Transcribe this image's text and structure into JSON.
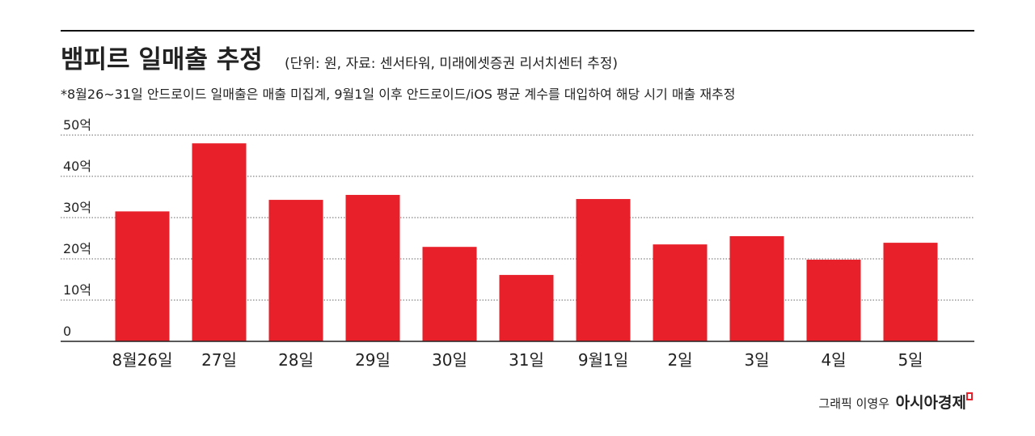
{
  "chart_data": {
    "type": "bar",
    "title": "뱀피르 일매출 추정",
    "subtitle": "(단위: 원, 자료: 센서타워, 미래에셋증권 리서치센터 추정)",
    "note": "*8월26~31일 안드로이드 일매출은 매출 미집계, 9월1일 이후 안드로이드/iOS 평균 계수를 대입하여 해당 시기 매출 재추정",
    "categories": [
      "8월26일",
      "27일",
      "28일",
      "29일",
      "30일",
      "31일",
      "9월1일",
      "2일",
      "3일",
      "4일",
      "5일"
    ],
    "values": [
      31.5,
      48,
      34.3,
      35.5,
      22.9,
      16.1,
      34.5,
      23.5,
      25.5,
      19.8,
      23.9
    ],
    "color": "#e8202a",
    "ylim": [
      0,
      50
    ],
    "yticks": [
      0,
      {
        "value": 10,
        "label": "10억"
      },
      {
        "value": 20,
        "label": "20억"
      },
      {
        "value": 30,
        "label": "30억"
      },
      {
        "value": 40,
        "label": "40억"
      },
      {
        "value": 50,
        "label": "50억"
      }
    ],
    "grid": true,
    "credit": "그래픽 이영우",
    "logo": "아시아경제"
  }
}
